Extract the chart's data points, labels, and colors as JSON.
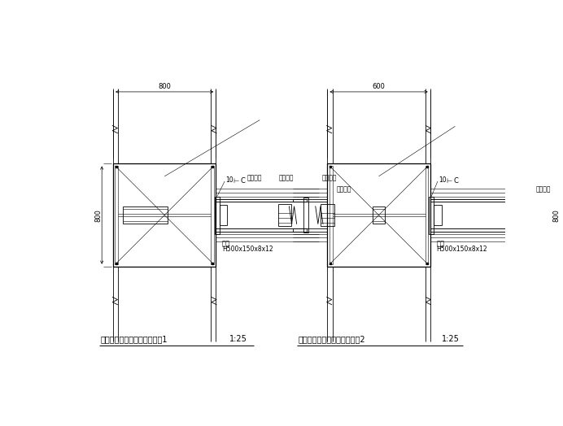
{
  "bg_color": "#ffffff",
  "line_color": "#000000",
  "title1": "型钢柱与梁连接节点配筋构造1",
  "title2": "型钢柱与梁连接节点配筋构造2",
  "scale": "1:25",
  "label_beam1": "钢梁",
  "label_beam2": "H500x150x8x12",
  "label_conc": "叠合钢筋",
  "label_side": "型钢构板",
  "dim_800_top": "800",
  "dim_800_h": "800",
  "dim_600": "600",
  "dim_10": "10"
}
